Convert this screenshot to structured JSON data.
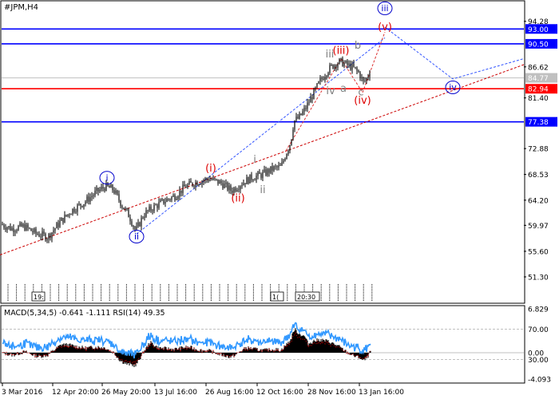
{
  "chart_data": {
    "type": "candlestick",
    "title": "#JPM,H4",
    "main": {
      "ylim": [
        47.0,
        97.6
      ],
      "y_ticks": [
        94.28,
        90.5,
        86.62,
        84.77,
        81.4,
        77.38,
        72.88,
        68.53,
        64.2,
        59.97,
        55.6,
        51.3
      ],
      "highlighted_tick_labels": [
        {
          "value": 93.0,
          "label": "93.00",
          "color": "#0000ff"
        },
        {
          "value": 90.5,
          "label": "90.50",
          "color": "#0000ff"
        },
        {
          "value": 84.77,
          "label": "84.77",
          "color": "#c0c0c0"
        },
        {
          "value": 82.94,
          "label": "82.94",
          "color": "#ff0000"
        },
        {
          "value": 77.38,
          "label": "77.38",
          "color": "#0000ff"
        }
      ],
      "horizontal_levels": [
        {
          "value": 93.0,
          "color": "#0000ff"
        },
        {
          "value": 90.5,
          "color": "#0000ff"
        },
        {
          "value": 84.77,
          "color": "#c0c0c0"
        },
        {
          "value": 82.94,
          "color": "#ff0000"
        },
        {
          "value": 77.38,
          "color": "#0000ff"
        }
      ],
      "price_path": [
        [
          0,
          60.2
        ],
        [
          15,
          59.4
        ],
        [
          30,
          59.8
        ],
        [
          45,
          58.6
        ],
        [
          60,
          58.0
        ],
        [
          75,
          60.5
        ],
        [
          90,
          62.5
        ],
        [
          105,
          63.8
        ],
        [
          120,
          65.5
        ],
        [
          132,
          66.5
        ],
        [
          142,
          66.0
        ],
        [
          152,
          63.5
        ],
        [
          162,
          61.5
        ],
        [
          170,
          59.0
        ],
        [
          180,
          61.8
        ],
        [
          192,
          63.0
        ],
        [
          205,
          64.0
        ],
        [
          220,
          65.0
        ],
        [
          232,
          66.5
        ],
        [
          245,
          67.2
        ],
        [
          262,
          67.8
        ],
        [
          278,
          67.0
        ],
        [
          290,
          65.8
        ],
        [
          302,
          67.0
        ],
        [
          315,
          68.0
        ],
        [
          328,
          68.5
        ],
        [
          342,
          69.5
        ],
        [
          352,
          69.8
        ],
        [
          358,
          72.0
        ],
        [
          364,
          74.0
        ],
        [
          368,
          77.5
        ],
        [
          374,
          78.0
        ],
        [
          382,
          79.5
        ],
        [
          392,
          82.0
        ],
        [
          400,
          84.0
        ],
        [
          410,
          86.0
        ],
        [
          418,
          87.0
        ],
        [
          426,
          87.5
        ],
        [
          434,
          87.0
        ],
        [
          442,
          86.5
        ],
        [
          450,
          85.5
        ],
        [
          455,
          84.0
        ],
        [
          460,
          84.8
        ],
        [
          464,
          86.5
        ]
      ],
      "wave_labels": [
        {
          "text": "i",
          "color": "#0000cc",
          "circled": true,
          "value": 67.5,
          "x_pos": 134
        },
        {
          "text": "ii",
          "color": "#0000cc",
          "circled": true,
          "value": 57.6,
          "x_pos": 171
        },
        {
          "text": "iii",
          "color": "#0000cc",
          "circled": true,
          "value": 96.0,
          "x_pos": 482
        },
        {
          "text": "iv",
          "color": "#0000cc",
          "circled": true,
          "value": 82.7,
          "x_pos": 567
        },
        {
          "text": "(i)",
          "color": "#dd0000",
          "circled": false,
          "value": 69.0,
          "x_pos": 264
        },
        {
          "text": "(ii)",
          "color": "#dd0000",
          "circled": false,
          "value": 64.0,
          "x_pos": 298
        },
        {
          "text": "(iii)",
          "color": "#dd0000",
          "circled": false,
          "value": 88.8,
          "x_pos": 427
        },
        {
          "text": "(iv)",
          "color": "#dd0000",
          "circled": false,
          "value": 80.4,
          "x_pos": 454
        },
        {
          "text": "(v)",
          "color": "#dd0000",
          "circled": false,
          "value": 92.8,
          "x_pos": 482
        },
        {
          "text": "i",
          "color": "#808080",
          "circled": false,
          "value": 70.5,
          "x_pos": 319
        },
        {
          "text": "ii",
          "color": "#808080",
          "circled": false,
          "value": 65.4,
          "x_pos": 329
        },
        {
          "text": "iii",
          "color": "#808080",
          "circled": false,
          "value": 88.2,
          "x_pos": 413
        },
        {
          "text": "iv",
          "color": "#808080",
          "circled": false,
          "value": 82.0,
          "x_pos": 414
        },
        {
          "text": "a",
          "color": "#808080",
          "circled": false,
          "value": 82.4,
          "x_pos": 430
        },
        {
          "text": "b",
          "color": "#808080",
          "circled": false,
          "value": 89.7,
          "x_pos": 448
        },
        {
          "text": "c",
          "color": "#808080",
          "circled": false,
          "value": 81.8,
          "x_pos": 452
        }
      ]
    },
    "macd": {
      "label": "MACD(5,34,5) -0.641 -1.111 RSI(14) 49.35",
      "ylim": [
        -4.6,
        7.2
      ],
      "y_ticks": [
        6.829,
        0.0,
        -4.093
      ],
      "rsi_ticks": [
        70.0,
        30.0
      ],
      "rsi_ylim": [
        0,
        100
      ]
    },
    "x_tick_labels": [
      "3 Mar 2016",
      "12 Apr 20:00",
      "26 May 20:00",
      "13 Jul 16:00",
      "26 Aug 16:00",
      "12 Oct 16:00",
      "28 Nov 16:00",
      "13 Jan 16:00"
    ],
    "session_markers": [
      "19:",
      "1(",
      "20:30"
    ]
  }
}
